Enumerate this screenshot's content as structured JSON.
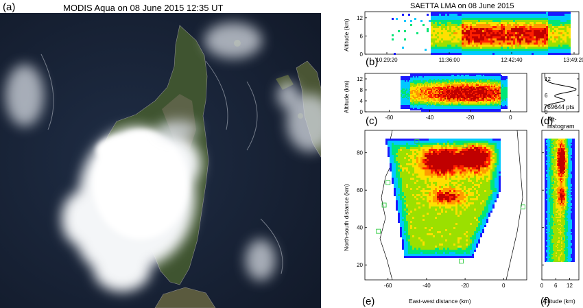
{
  "satellite": {
    "letter": "(a)",
    "title": "MODIS Aqua on 08 June 2015 12:35 UT",
    "colors": {
      "sea": "#1a2438",
      "land": "#3d4f2c",
      "cloud": "#f4f6f8"
    }
  },
  "lma": {
    "title": "SAETTA LMA on 08 June 2015",
    "colormap": [
      "#1a1aff",
      "#00c8ff",
      "#00e676",
      "#9be000",
      "#ffe000",
      "#ff9a00",
      "#ff2000",
      "#c00000"
    ]
  },
  "chart_data": [
    {
      "panel": "b",
      "letter": "(b)",
      "type": "heatmap",
      "ylabel": "Altitude (km)",
      "x_ticks": [
        "10:29:20",
        "11:36:00",
        "12:42:40",
        "13:49:20"
      ],
      "y_ticks": [
        0,
        6,
        12
      ],
      "ylim": [
        0,
        14
      ]
    },
    {
      "panel": "c",
      "letter": "(c)",
      "type": "heatmap",
      "ylabel": "Altitude (km)",
      "x_ticks": [
        -60,
        -40,
        -20,
        0
      ],
      "xlim": [
        -72,
        8
      ],
      "y_ticks": [
        0,
        4,
        8,
        12
      ],
      "ylim": [
        0,
        14
      ]
    },
    {
      "panel": "d",
      "letter": "(d)",
      "type": "line",
      "xlabel": "Alt-histogram",
      "y_ticks": [
        0,
        6,
        12
      ],
      "ylim": [
        0,
        14
      ],
      "annotation": "769644 pts"
    },
    {
      "panel": "e",
      "letter": "(e)",
      "type": "heatmap",
      "xlabel": "East-west distance (km)",
      "ylabel": "North-south distance (km)",
      "x_ticks": [
        -60,
        -40,
        -20,
        0
      ],
      "xlim": [
        -72,
        12
      ],
      "y_ticks": [
        20,
        40,
        60,
        80
      ],
      "ylim": [
        12,
        92
      ]
    },
    {
      "panel": "f",
      "letter": "(f)",
      "type": "heatmap",
      "xlabel": "Altitude (km)",
      "x_ticks": [
        0,
        6,
        12
      ],
      "xlim": [
        0,
        16
      ],
      "y_ticks": [
        20,
        40,
        60,
        80
      ],
      "ylim": [
        12,
        92
      ]
    }
  ]
}
